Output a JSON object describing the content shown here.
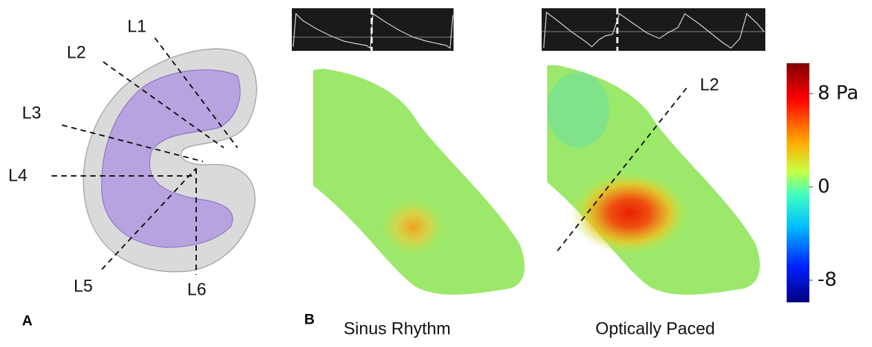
{
  "panel_a": {
    "label": "A",
    "lines": [
      "L1",
      "L2",
      "L3",
      "L4",
      "L5",
      "L6"
    ]
  },
  "panel_b": {
    "label": "B",
    "captions": [
      "Sinus Rhythm",
      "Optically Paced"
    ],
    "line_label": "L2"
  },
  "colorbar": {
    "lim": [
      -9.9,
      10.6
    ],
    "ticks": [
      {
        "value": 8,
        "label": "8 Pa"
      },
      {
        "value": 0,
        "label": "0"
      },
      {
        "value": -8,
        "label": "-8"
      }
    ]
  }
}
